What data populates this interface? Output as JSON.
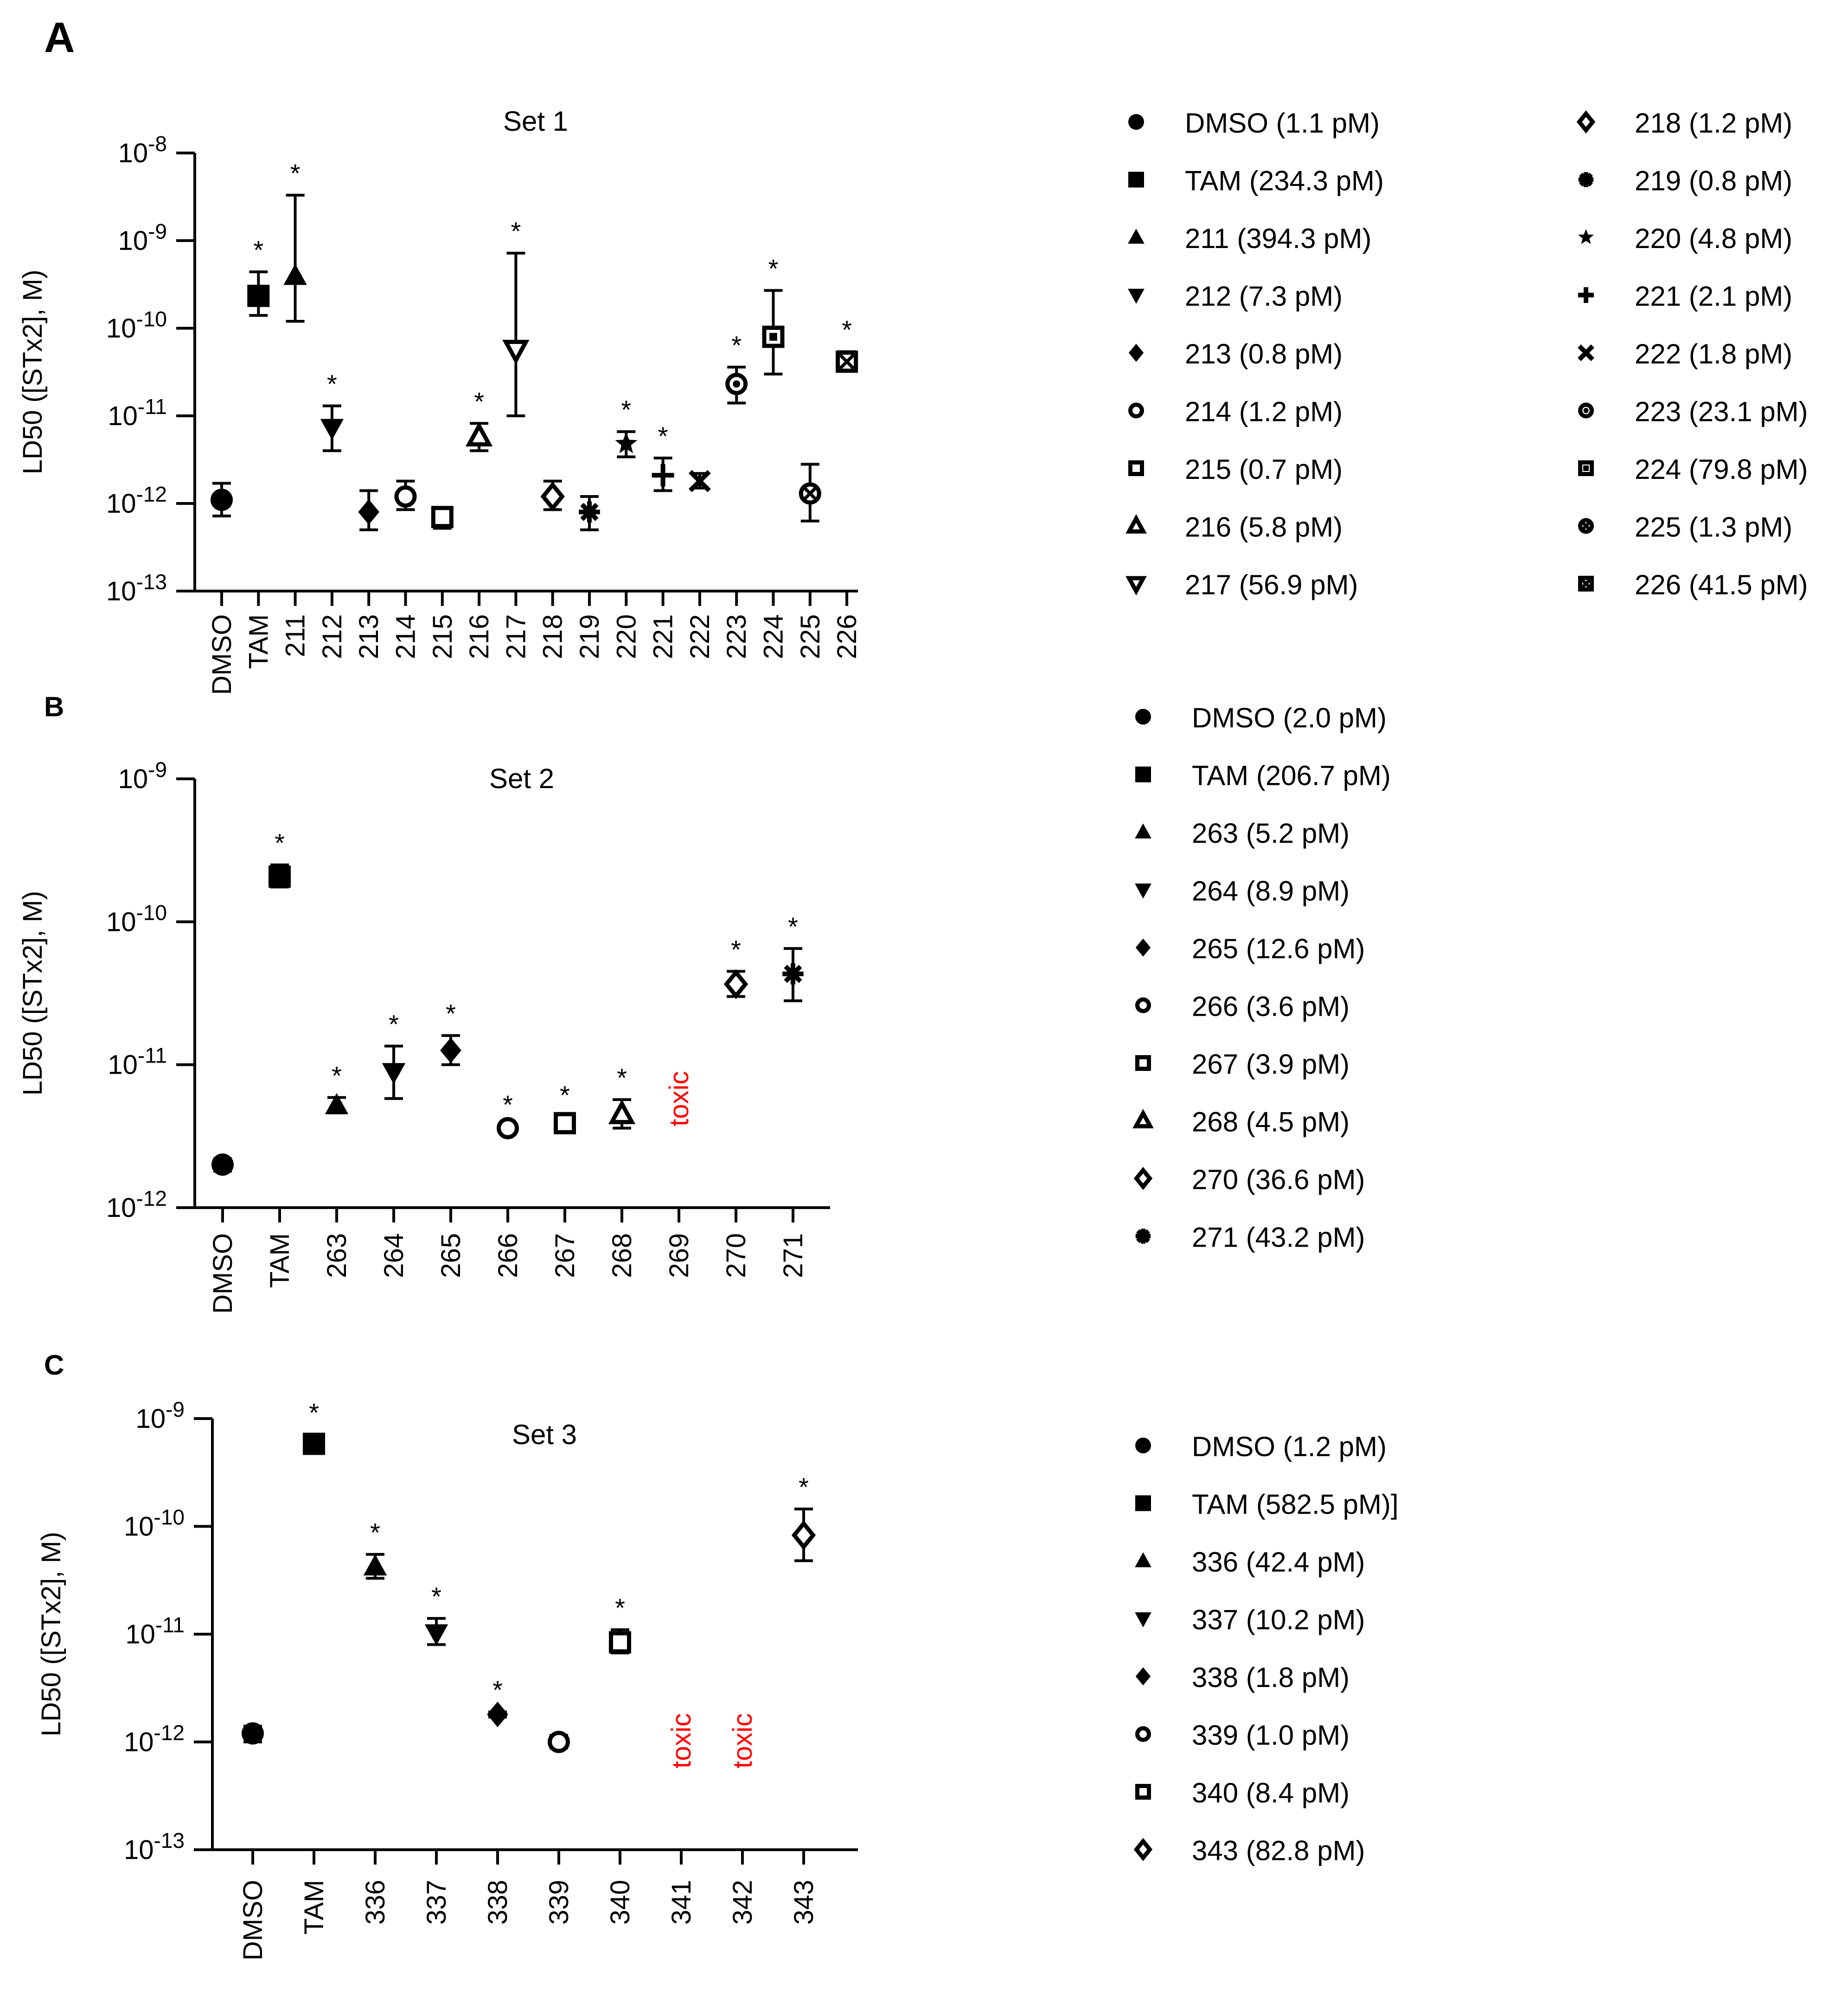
{
  "panels": [
    {
      "label": "A",
      "chart_data": {
        "type": "scatter",
        "title": "Set 1",
        "xlabel": "",
        "ylabel": "LD50 ([STx2], M)",
        "yscale": "log",
        "ylim_exponents": [
          -13,
          -8
        ],
        "categories": [
          "DMSO",
          "TAM",
          "211",
          "212",
          "213",
          "214",
          "215",
          "216",
          "217",
          "218",
          "219",
          "220",
          "221",
          "222",
          "223",
          "224",
          "225",
          "226"
        ],
        "series": [
          {
            "name": "DMSO",
            "legend": "DMSO (1.1 pM)",
            "marker": "circle-filled",
            "value": 1.1e-12,
            "err_low": 7.2e-13,
            "err_high": 1.7e-12,
            "star": false
          },
          {
            "name": "TAM",
            "legend": "TAM (234.3 pM)",
            "marker": "square-filled",
            "value": 2.34e-10,
            "err_low": 1.4e-10,
            "err_high": 4.4e-10,
            "star": true
          },
          {
            "name": "211",
            "legend": "211 (394.3 pM)",
            "marker": "triangle-up-filled",
            "value": 3.94e-10,
            "err_low": 1.2e-10,
            "err_high": 3.3e-09,
            "star": true
          },
          {
            "name": "212",
            "legend": "212 (7.3 pM)",
            "marker": "triangle-down-filled",
            "value": 7.3e-12,
            "err_low": 4e-12,
            "err_high": 1.3e-11,
            "star": true
          },
          {
            "name": "213",
            "legend": "213 (0.8 pM)",
            "marker": "diamond-filled",
            "value": 8e-13,
            "err_low": 5e-13,
            "err_high": 1.4e-12,
            "star": false
          },
          {
            "name": "214",
            "legend": "214 (1.2 pM)",
            "marker": "circle-open",
            "value": 1.2e-12,
            "err_low": 8.5e-13,
            "err_high": 1.8e-12,
            "star": false
          },
          {
            "name": "215",
            "legend": "215 (0.7 pM)",
            "marker": "square-open",
            "value": 7e-13,
            "err_low": 5.2e-13,
            "err_high": 9e-13,
            "star": false
          },
          {
            "name": "216",
            "legend": "216 (5.8 pM)",
            "marker": "triangle-up-open",
            "value": 5.8e-12,
            "err_low": 4e-12,
            "err_high": 8.2e-12,
            "star": true
          },
          {
            "name": "217",
            "legend": "217 (56.9 pM)",
            "marker": "triangle-down-open",
            "value": 5.69e-11,
            "err_low": 1e-11,
            "err_high": 7.2e-10,
            "star": true
          },
          {
            "name": "218",
            "legend": "218 (1.2 pM)",
            "marker": "diamond-open",
            "value": 1.2e-12,
            "err_low": 8.5e-13,
            "err_high": 1.8e-12,
            "star": false
          },
          {
            "name": "219",
            "legend": "219 (0.8 pM)",
            "marker": "asterisk",
            "value": 8e-13,
            "err_low": 5e-13,
            "err_high": 1.2e-12,
            "star": false
          },
          {
            "name": "220",
            "legend": "220 (4.8 pM)",
            "marker": "star",
            "value": 4.8e-12,
            "err_low": 3.4e-12,
            "err_high": 6.6e-12,
            "star": true
          },
          {
            "name": "221",
            "legend": "221 (2.1 pM)",
            "marker": "plus",
            "value": 2.1e-12,
            "err_low": 1.4e-12,
            "err_high": 3.3e-12,
            "star": true
          },
          {
            "name": "222",
            "legend": "222 (1.8 pM)",
            "marker": "cross",
            "value": 1.8e-12,
            "err_low": 1.5e-12,
            "err_high": 2.2e-12,
            "star": false
          },
          {
            "name": "223",
            "legend": "223 (23.1 pM)",
            "marker": "circle-dot",
            "value": 2.31e-11,
            "err_low": 1.4e-11,
            "err_high": 3.6e-11,
            "star": true
          },
          {
            "name": "224",
            "legend": "224 (79.8 pM)",
            "marker": "square-dot",
            "value": 7.98e-11,
            "err_low": 3e-11,
            "err_high": 2.7e-10,
            "star": true
          },
          {
            "name": "225",
            "legend": "225 (1.3 pM)",
            "marker": "circle-x",
            "value": 1.3e-12,
            "err_low": 6.3e-13,
            "err_high": 2.8e-12,
            "star": false
          },
          {
            "name": "226",
            "legend": "226 (41.5 pM)",
            "marker": "square-x",
            "value": 4.15e-11,
            "err_low": 3.3e-11,
            "err_high": 5.4e-11,
            "star": true
          }
        ],
        "toxic": []
      }
    },
    {
      "label": "B",
      "chart_data": {
        "type": "scatter",
        "title": "Set 2",
        "xlabel": "",
        "ylabel": "LD50 ([STx2], M)",
        "yscale": "log",
        "ylim_exponents": [
          -12,
          -9
        ],
        "categories": [
          "DMSO",
          "TAM",
          "263",
          "264",
          "265",
          "266",
          "267",
          "268",
          "269",
          "270",
          "271"
        ],
        "series": [
          {
            "name": "DMSO",
            "legend": "DMSO (2.0 pM)",
            "marker": "circle-filled",
            "value": 2e-12,
            "err_low": 1.8e-12,
            "err_high": 2.2e-12,
            "star": false
          },
          {
            "name": "TAM",
            "legend": "TAM (206.7 pM)",
            "marker": "square-filled",
            "value": 2.07e-10,
            "err_low": 1.75e-10,
            "err_high": 2.5e-10,
            "star": true
          },
          {
            "name": "263",
            "legend": "263 (5.2 pM)",
            "marker": "triangle-up-filled",
            "value": 5.2e-12,
            "err_low": 4.6e-12,
            "err_high": 5.9e-12,
            "star": true
          },
          {
            "name": "264",
            "legend": "264 (8.9 pM)",
            "marker": "triangle-down-filled",
            "value": 8.9e-12,
            "err_low": 5.8e-12,
            "err_high": 1.35e-11,
            "star": true
          },
          {
            "name": "265",
            "legend": "265 (12.6 pM)",
            "marker": "diamond-filled",
            "value": 1.26e-11,
            "err_low": 1e-11,
            "err_high": 1.6e-11,
            "star": true
          },
          {
            "name": "266",
            "legend": "266 (3.6 pM)",
            "marker": "circle-open",
            "value": 3.6e-12,
            "err_low": 3.5e-12,
            "err_high": 3.7e-12,
            "star": true
          },
          {
            "name": "267",
            "legend": "267 (3.9 pM)",
            "marker": "square-open",
            "value": 3.9e-12,
            "err_low": 3.4e-12,
            "err_high": 4.3e-12,
            "star": true
          },
          {
            "name": "268",
            "legend": "268 (4.5 pM)",
            "marker": "triangle-up-open",
            "value": 4.5e-12,
            "err_low": 3.6e-12,
            "err_high": 5.7e-12,
            "star": true
          },
          {
            "name": "270",
            "legend": "270 (36.6 pM)",
            "marker": "diamond-open",
            "value": 3.66e-11,
            "err_low": 3e-11,
            "err_high": 4.5e-11,
            "star": true
          },
          {
            "name": "271",
            "legend": "271 (43.2 pM)",
            "marker": "asterisk",
            "value": 4.32e-11,
            "err_low": 2.8e-11,
            "err_high": 6.5e-11,
            "star": true
          }
        ],
        "toxic": [
          {
            "category": "269",
            "label": "toxic"
          }
        ]
      }
    },
    {
      "label": "C",
      "chart_data": {
        "type": "scatter",
        "title": "Set 3",
        "xlabel": "",
        "ylabel": "LD50 ([STx2], M)",
        "yscale": "log",
        "ylim_exponents": [
          -13,
          -9
        ],
        "categories": [
          "DMSO",
          "TAM",
          "336",
          "337",
          "338",
          "339",
          "340",
          "341",
          "342",
          "343"
        ],
        "series": [
          {
            "name": "DMSO",
            "legend": "DMSO (1.2 pM)",
            "marker": "circle-filled",
            "value": 1.2e-12,
            "err_low": 1e-12,
            "err_high": 1.4e-12,
            "star": false
          },
          {
            "name": "TAM",
            "legend": "TAM (582.5 pM)]",
            "marker": "square-filled",
            "value": 5.83e-10,
            "err_low": 4.8e-10,
            "err_high": 7.1e-10,
            "star": true
          },
          {
            "name": "336",
            "legend": "336 (42.4 pM)",
            "marker": "triangle-up-filled",
            "value": 4.24e-11,
            "err_low": 3.3e-11,
            "err_high": 5.5e-11,
            "star": true
          },
          {
            "name": "337",
            "legend": "337 (10.2 pM)",
            "marker": "triangle-down-filled",
            "value": 1.02e-11,
            "err_low": 8e-12,
            "err_high": 1.4e-11,
            "star": true
          },
          {
            "name": "338",
            "legend": "338 (1.8 pM)",
            "marker": "diamond-filled",
            "value": 1.8e-12,
            "err_low": 1.7e-12,
            "err_high": 1.9e-12,
            "star": true
          },
          {
            "name": "339",
            "legend": "339 (1.0 pM)",
            "marker": "circle-open",
            "value": 1e-12,
            "err_low": 8.8e-13,
            "err_high": 1.15e-12,
            "star": false
          },
          {
            "name": "340",
            "legend": "340 (8.4 pM)",
            "marker": "square-open",
            "value": 8.4e-12,
            "err_low": 6.7e-12,
            "err_high": 1.1e-11,
            "star": true
          },
          {
            "name": "343",
            "legend": "343 (82.8 pM)",
            "marker": "diamond-open",
            "value": 8.28e-11,
            "err_low": 4.8e-11,
            "err_high": 1.45e-10,
            "star": true
          }
        ],
        "toxic": [
          {
            "category": "341",
            "label": "toxic"
          },
          {
            "category": "342",
            "label": "toxic"
          }
        ]
      }
    }
  ],
  "star_symbol": "*",
  "tick_base": "10",
  "colors": {
    "ink": "#000000",
    "toxic": "#ff0000",
    "background": "#ffffff"
  }
}
